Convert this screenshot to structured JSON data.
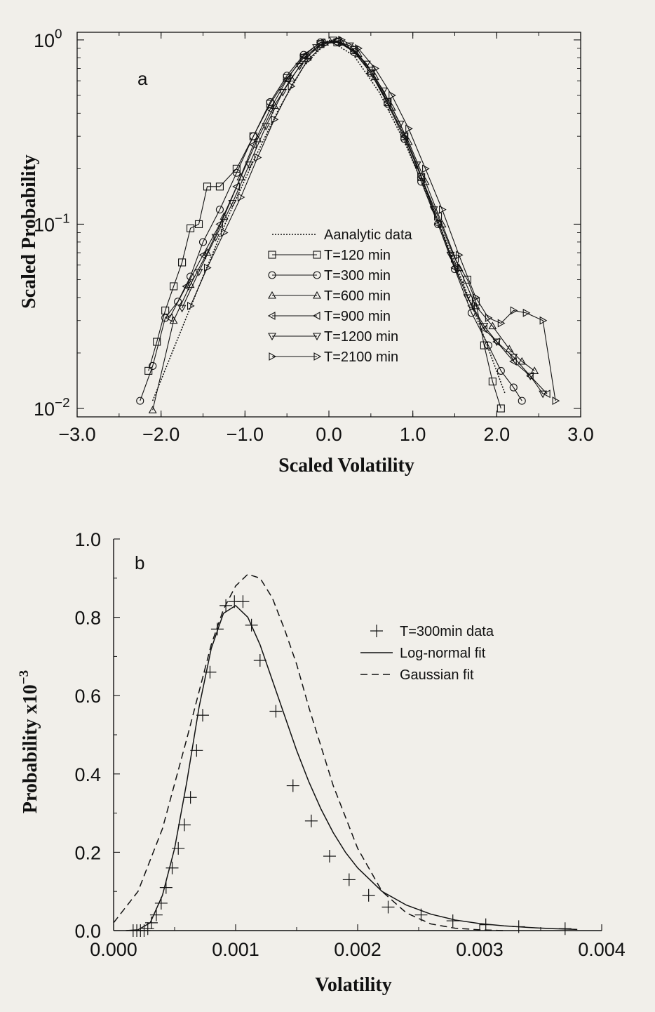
{
  "figure": {
    "panel_a_letter": "a",
    "panel_b_letter": "b"
  },
  "chart_data": [
    {
      "type": "line",
      "panel": "a",
      "xlabel": "Scaled Volatility",
      "ylabel": "Scaled Probability",
      "xscale": "linear",
      "yscale": "log",
      "xlim": [
        -3.0,
        3.0
      ],
      "ylim": [
        0.009,
        1.1
      ],
      "x_ticks": [
        -3.0,
        -2.0,
        -1.0,
        0.0,
        1.0,
        2.0,
        3.0
      ],
      "x_tick_labels": [
        "−3.0",
        "−2.0",
        "−1.0",
        "0.0",
        "1.0",
        "2.0",
        "3.0"
      ],
      "y_ticks": [
        1,
        0.1,
        0.01
      ],
      "y_tick_labels": [
        {
          "base": "10",
          "exp": "0"
        },
        {
          "base": "10",
          "exp": "−1"
        },
        {
          "base": "10",
          "exp": "−2"
        }
      ],
      "grid": false,
      "legend_position": "center",
      "series": [
        {
          "name": "Aanalytic data",
          "marker": "none",
          "dash": "dotted",
          "x": [
            -2.1,
            -1.8,
            -1.5,
            -1.2,
            -0.9,
            -0.6,
            -0.3,
            0.0,
            0.3,
            0.6,
            0.9,
            1.2,
            1.5,
            1.8,
            2.1
          ],
          "y": [
            0.011,
            0.024,
            0.052,
            0.11,
            0.22,
            0.42,
            0.72,
            1.0,
            0.82,
            0.52,
            0.28,
            0.135,
            0.062,
            0.028,
            0.012
          ]
        },
        {
          "name": "T=120 min",
          "marker": "square",
          "dash": "solid",
          "x": [
            -2.15,
            -2.05,
            -1.95,
            -1.85,
            -1.75,
            -1.65,
            -1.55,
            -1.45,
            -1.3,
            -1.1,
            -0.9,
            -0.7,
            -0.5,
            -0.3,
            -0.1,
            0.1,
            0.3,
            0.5,
            0.7,
            0.9,
            1.1,
            1.3,
            1.5,
            1.65,
            1.75,
            1.85,
            1.95,
            2.05
          ],
          "y": [
            0.016,
            0.023,
            0.034,
            0.046,
            0.062,
            0.095,
            0.1,
            0.16,
            0.16,
            0.2,
            0.3,
            0.45,
            0.62,
            0.8,
            0.95,
            0.97,
            0.88,
            0.68,
            0.46,
            0.3,
            0.18,
            0.11,
            0.065,
            0.05,
            0.038,
            0.022,
            0.014,
            0.01
          ]
        },
        {
          "name": "T=300 min",
          "marker": "circle",
          "dash": "solid",
          "x": [
            -2.25,
            -2.1,
            -1.95,
            -1.8,
            -1.65,
            -1.5,
            -1.3,
            -1.1,
            -0.9,
            -0.7,
            -0.5,
            -0.3,
            -0.1,
            0.1,
            0.3,
            0.5,
            0.7,
            0.9,
            1.1,
            1.3,
            1.5,
            1.7,
            1.9,
            2.05,
            2.2,
            2.3
          ],
          "y": [
            0.011,
            0.017,
            0.031,
            0.038,
            0.052,
            0.08,
            0.12,
            0.19,
            0.3,
            0.46,
            0.64,
            0.83,
            0.97,
            0.98,
            0.86,
            0.66,
            0.45,
            0.29,
            0.17,
            0.1,
            0.057,
            0.033,
            0.022,
            0.016,
            0.013,
            0.011
          ]
        },
        {
          "name": "T=600 min",
          "marker": "triangle-up",
          "dash": "solid",
          "x": [
            -2.1,
            -1.85,
            -1.65,
            -1.45,
            -1.25,
            -1.05,
            -0.85,
            -0.65,
            -0.45,
            -0.25,
            -0.05,
            0.15,
            0.35,
            0.55,
            0.75,
            0.95,
            1.15,
            1.35,
            1.55,
            1.75,
            1.95,
            2.15,
            2.3,
            2.45
          ],
          "y": [
            0.0098,
            0.03,
            0.047,
            0.07,
            0.11,
            0.18,
            0.29,
            0.44,
            0.62,
            0.82,
            0.97,
            0.97,
            0.84,
            0.63,
            0.43,
            0.28,
            0.17,
            0.1,
            0.058,
            0.036,
            0.028,
            0.021,
            0.018,
            0.016
          ]
        },
        {
          "name": "T=900 min",
          "marker": "triangle-left",
          "dash": "solid",
          "x": [
            -1.9,
            -1.7,
            -1.5,
            -1.3,
            -1.1,
            -0.9,
            -0.7,
            -0.5,
            -0.3,
            -0.1,
            0.1,
            0.3,
            0.5,
            0.7,
            0.9,
            1.1,
            1.3,
            1.5,
            1.7,
            1.85,
            2.0,
            2.2,
            2.4,
            2.6
          ],
          "y": [
            0.031,
            0.046,
            0.068,
            0.1,
            0.16,
            0.27,
            0.42,
            0.61,
            0.82,
            0.97,
            0.99,
            0.87,
            0.66,
            0.46,
            0.3,
            0.18,
            0.1,
            0.058,
            0.036,
            0.027,
            0.023,
            0.018,
            0.015,
            0.012
          ]
        },
        {
          "name": "T=1200 min",
          "marker": "triangle-down",
          "dash": "solid",
          "x": [
            -1.75,
            -1.55,
            -1.35,
            -1.15,
            -0.95,
            -0.75,
            -0.55,
            -0.35,
            -0.15,
            0.05,
            0.25,
            0.45,
            0.65,
            0.85,
            1.05,
            1.25,
            1.45,
            1.65,
            1.85,
            2.0,
            2.2,
            2.4,
            2.55
          ],
          "y": [
            0.035,
            0.055,
            0.085,
            0.13,
            0.21,
            0.34,
            0.52,
            0.72,
            0.91,
            1.0,
            0.93,
            0.74,
            0.53,
            0.35,
            0.21,
            0.12,
            0.068,
            0.04,
            0.028,
            0.023,
            0.019,
            0.015,
            0.012
          ]
        },
        {
          "name": "T=2100 min",
          "marker": "triangle-right",
          "dash": "solid",
          "x": [
            -1.65,
            -1.45,
            -1.25,
            -1.05,
            -0.85,
            -0.65,
            -0.45,
            -0.25,
            -0.05,
            0.15,
            0.35,
            0.55,
            0.75,
            0.95,
            1.15,
            1.35,
            1.55,
            1.75,
            1.9,
            2.05,
            2.2,
            2.35,
            2.55,
            2.7
          ],
          "y": [
            0.036,
            0.058,
            0.09,
            0.14,
            0.23,
            0.37,
            0.56,
            0.78,
            0.95,
            1.0,
            0.9,
            0.7,
            0.5,
            0.33,
            0.2,
            0.12,
            0.068,
            0.04,
            0.031,
            0.029,
            0.034,
            0.033,
            0.03,
            0.011
          ]
        }
      ]
    },
    {
      "type": "line",
      "panel": "b",
      "xlabel": "Volatility",
      "ylabel": "Probability x10",
      "ylabel_exp": "−3",
      "xscale": "linear",
      "yscale": "linear",
      "xlim": [
        0.0,
        0.004
      ],
      "ylim": [
        0.0,
        1.0
      ],
      "x_ticks": [
        0.0,
        0.001,
        0.002,
        0.003,
        0.004
      ],
      "x_tick_labels": [
        "0.000",
        "0.001",
        "0.002",
        "0.003",
        "0.004"
      ],
      "y_ticks": [
        0.0,
        0.2,
        0.4,
        0.6,
        0.8,
        1.0
      ],
      "y_tick_labels": [
        "0.0",
        "0.2",
        "0.4",
        "0.6",
        "0.8",
        "1.0"
      ],
      "grid": false,
      "legend_position": "right",
      "series": [
        {
          "name": "T=300min data",
          "marker": "plus",
          "dash": "none",
          "x": [
            0.00016,
            0.00019,
            0.00022,
            0.00025,
            0.00028,
            0.00031,
            0.00035,
            0.00039,
            0.00043,
            0.00048,
            0.00053,
            0.00058,
            0.00063,
            0.00068,
            0.00073,
            0.00079,
            0.00085,
            0.00092,
            0.00099,
            0.00106,
            0.00113,
            0.0012,
            0.00133,
            0.00147,
            0.00162,
            0.00177,
            0.00193,
            0.00209,
            0.00225,
            0.00252,
            0.00278,
            0.00305,
            0.00332,
            0.0037
          ],
          "y": [
            0.0,
            0.0,
            0.0,
            0.0,
            0.005,
            0.02,
            0.04,
            0.07,
            0.11,
            0.16,
            0.21,
            0.27,
            0.34,
            0.46,
            0.55,
            0.66,
            0.77,
            0.83,
            0.84,
            0.84,
            0.78,
            0.69,
            0.56,
            0.37,
            0.28,
            0.19,
            0.13,
            0.09,
            0.06,
            0.04,
            0.025,
            0.015,
            0.01,
            0.005
          ]
        },
        {
          "name": "Log-normal fit",
          "marker": "none",
          "dash": "solid",
          "x": [
            0.0001,
            0.0002,
            0.0003,
            0.0004,
            0.0005,
            0.0006,
            0.0007,
            0.0008,
            0.0009,
            0.001,
            0.0011,
            0.0012,
            0.0013,
            0.0014,
            0.0015,
            0.0016,
            0.0017,
            0.0018,
            0.0019,
            0.002,
            0.0022,
            0.0024,
            0.0026,
            0.0028,
            0.003,
            0.0032,
            0.0034,
            0.0036,
            0.0038
          ],
          "y": [
            0.0,
            0.002,
            0.02,
            0.09,
            0.21,
            0.38,
            0.57,
            0.72,
            0.81,
            0.83,
            0.8,
            0.73,
            0.64,
            0.55,
            0.46,
            0.38,
            0.31,
            0.25,
            0.2,
            0.16,
            0.1,
            0.065,
            0.042,
            0.027,
            0.018,
            0.012,
            0.008,
            0.005,
            0.003
          ]
        },
        {
          "name": "Gaussian fit",
          "marker": "none",
          "dash": "dashed",
          "x": [
            0.0,
            0.0002,
            0.0004,
            0.0006,
            0.0008,
            0.0009,
            0.001,
            0.0011,
            0.0012,
            0.0013,
            0.0014,
            0.0015,
            0.0016,
            0.0017,
            0.0018,
            0.002,
            0.0022,
            0.0024,
            0.0026,
            0.0028,
            0.003,
            0.0032
          ],
          "y": [
            0.02,
            0.1,
            0.26,
            0.49,
            0.73,
            0.82,
            0.88,
            0.91,
            0.9,
            0.85,
            0.77,
            0.68,
            0.57,
            0.47,
            0.37,
            0.21,
            0.1,
            0.045,
            0.017,
            0.006,
            0.002,
            0.0
          ]
        }
      ]
    }
  ]
}
